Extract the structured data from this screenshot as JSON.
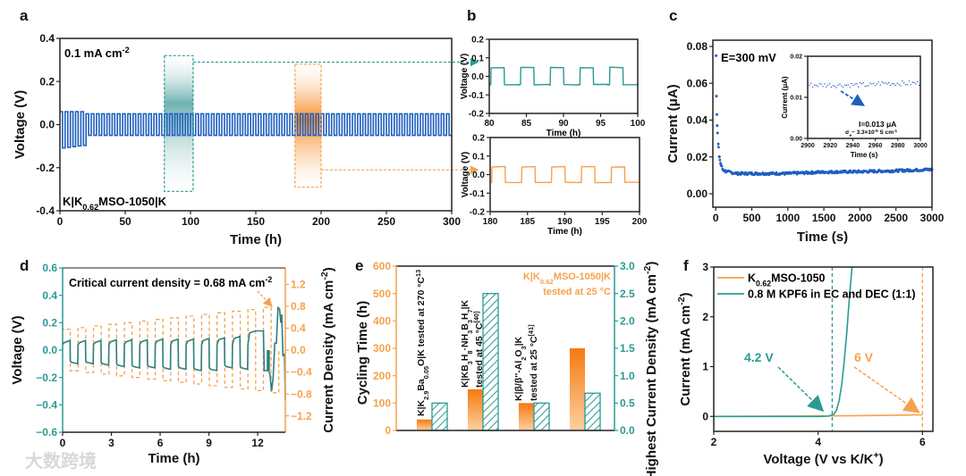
{
  "panel_labels": {
    "a": "a",
    "b": "b",
    "c": "c",
    "d": "d",
    "e": "e",
    "f": "f"
  },
  "watermark": "大数跨境",
  "colors": {
    "blue": "#1f5fc0",
    "teal": "#2a9a93",
    "teal_dark": "#2d7f7c",
    "orange": "#f6a14e",
    "orange_bar": "#f57f17",
    "axis": "#222222"
  },
  "chart_data": {
    "a": {
      "type": "line",
      "xlabel": "Time (h)",
      "ylabel": "Voltage (V)",
      "xlim": [
        0,
        300
      ],
      "ylim": [
        -0.4,
        0.4
      ],
      "xticks": [
        0,
        50,
        100,
        150,
        200,
        250,
        300
      ],
      "xtick_labels": [
        "0",
        "50",
        "100",
        "150",
        "200",
        "250",
        "300"
      ],
      "yticks": [
        -0.4,
        -0.2,
        0,
        0.2,
        0.4
      ],
      "ytick_labels": [
        "-0.4",
        "-0.2",
        "0.0",
        "0.2",
        "0.4"
      ],
      "current_label": [
        [
          "0.1 mA cm",
          "n"
        ],
        [
          "-2",
          "sup"
        ]
      ],
      "cell_label": [
        [
          "K|K",
          "n"
        ],
        [
          "0.62",
          "sub"
        ],
        [
          "MSO-1050|K",
          "n"
        ]
      ],
      "series": {
        "name": "K|K0.62MSO-1050|K voltage",
        "period_h": 4,
        "amplitude_V": 0.05,
        "initial_until_h": 20,
        "initial_pos_V": 0.06,
        "initial_neg_V": -0.11,
        "spike": [
          112,
          0.09
        ]
      },
      "highlights": [
        {
          "range_h": [
            80,
            102
          ],
          "v_range": [
            -0.31,
            0.32
          ],
          "color": "teal"
        },
        {
          "range_h": [
            180,
            200
          ],
          "v_range": [
            -0.29,
            0.28
          ],
          "color": "orange"
        }
      ]
    },
    "b_top": {
      "type": "line",
      "xlabel": "Time (h)",
      "ylabel": "Voltage (V)",
      "xlim": [
        80,
        100
      ],
      "ylim": [
        -0.2,
        0.2
      ],
      "xticks": [
        80,
        85,
        90,
        95,
        100
      ],
      "xtick_labels": [
        "80",
        "85",
        "90",
        "95",
        "100"
      ],
      "yticks": [
        -0.2,
        -0.1,
        0,
        0.1,
        0.2
      ],
      "ytick_labels": [
        "-0.2",
        "-0.1",
        "0.0",
        "0.1",
        "0.2"
      ],
      "series": {
        "period_h": 4,
        "high_V": 0.048,
        "low_V": -0.045
      }
    },
    "b_bottom": {
      "type": "line",
      "xlabel": "Time (h)",
      "ylabel": "Voltage (V)",
      "xlim": [
        180,
        200
      ],
      "ylim": [
        -0.2,
        0.2
      ],
      "xticks": [
        180,
        185,
        190,
        195,
        200
      ],
      "xtick_labels": [
        "180",
        "185",
        "190",
        "195",
        "200"
      ],
      "yticks": [
        -0.2,
        -0.1,
        0,
        0.1,
        0.2
      ],
      "ytick_labels": [
        "-0.2",
        "-0.1",
        "0.0",
        "0.1",
        "0.2"
      ],
      "series": {
        "period_h": 4,
        "high_V": 0.042,
        "low_V": -0.042
      }
    },
    "c": {
      "type": "scatter",
      "xlabel": "Time (s)",
      "ylabel": "Current (μA)",
      "xlim": [
        -40,
        3000
      ],
      "ylim": [
        -0.0073,
        0.0834
      ],
      "xticks": [
        0,
        500,
        1000,
        1500,
        2000,
        2500,
        3000
      ],
      "xtick_labels": [
        "0",
        "500",
        "1000",
        "1500",
        "2000",
        "2500",
        "3000"
      ],
      "yticks": [
        0,
        0.02,
        0.04,
        0.06,
        0.08
      ],
      "ytick_labels": [
        "0.00",
        "0.02",
        "0.04",
        "0.06",
        "0.08"
      ],
      "annotation": "E=300 mV",
      "points": [
        [
          5,
          0.075
        ],
        [
          10,
          0.053
        ],
        [
          15,
          0.043
        ],
        [
          20,
          0.037
        ],
        [
          25,
          0.033
        ],
        [
          35,
          0.027
        ],
        [
          50,
          0.02
        ],
        [
          70,
          0.016
        ],
        [
          100,
          0.013
        ],
        [
          150,
          0.012
        ],
        [
          300,
          0.011
        ],
        [
          1000,
          0.011
        ],
        [
          1500,
          0.0118
        ],
        [
          2000,
          0.012
        ],
        [
          2500,
          0.0125
        ],
        [
          3000,
          0.0132
        ]
      ],
      "inset": {
        "xlabel": "Time (s)",
        "ylabel": "Current (μA)",
        "xlim": [
          2900,
          3000
        ],
        "ylim": [
          0,
          0.02
        ],
        "xticks": [
          2900,
          2920,
          2940,
          2960,
          2980,
          3000
        ],
        "xtick_labels": [
          "2900",
          "2920",
          "2940",
          "2960",
          "2980",
          "3000"
        ],
        "yticks": [
          0,
          0.01,
          0.02
        ],
        "ytick_labels": [
          "0.00",
          "0.01",
          "0.02"
        ],
        "mean_current_uA": 0.013,
        "current_label": "I=0.013 μA",
        "conductivity_label": [
          [
            "σ",
            "n"
          ],
          [
            "e",
            "sub"
          ],
          [
            "~ 3.3×10",
            "n"
          ],
          [
            "-9",
            "sup"
          ],
          [
            " S cm",
            "n"
          ],
          [
            "-1",
            "sup"
          ]
        ]
      }
    },
    "d": {
      "type": "line",
      "xlabel": "Time (h)",
      "ylabel": "Voltage (V)",
      "y2label": [
        [
          "Current Density (mA cm",
          "n"
        ],
        [
          "-2",
          "sup"
        ],
        [
          ")",
          "n"
        ]
      ],
      "xlim": [
        0,
        13.7
      ],
      "ylim": [
        -0.6,
        0.6
      ],
      "y2lim": [
        -1.5,
        1.5
      ],
      "xticks": [
        0,
        3,
        6,
        9,
        12
      ],
      "xtick_labels": [
        "0",
        "3",
        "6",
        "9",
        "12"
      ],
      "yticks": [
        -0.6,
        -0.4,
        -0.2,
        0,
        0.2,
        0.4,
        0.6
      ],
      "ytick_labels": [
        "−0.6",
        "−0.4",
        "−0.2",
        "0.0",
        "0.2",
        "0.4",
        "0.6"
      ],
      "y2ticks": [
        -1.2,
        -0.8,
        -0.4,
        0,
        0.4,
        0.8,
        1.2
      ],
      "y2tick_labels": [
        "−1.2",
        "−0.8",
        "−0.4",
        "0.0",
        "0.4",
        "0.8",
        "1.2"
      ],
      "annotation": [
        [
          "Critical current density = 0.68 mA cm",
          "n"
        ],
        [
          "-2",
          "sup"
        ]
      ],
      "period_h": 0.95,
      "current_density_mA_cm2": [
        0.38,
        0.41,
        0.44,
        0.47,
        0.5,
        0.53,
        0.56,
        0.59,
        0.62,
        0.65,
        0.68,
        0.71,
        0.74,
        0.78
      ],
      "voltage_pos_V": [
        0.07,
        0.07,
        0.07,
        0.075,
        0.075,
        0.075,
        0.08,
        0.08,
        0.08,
        0.085,
        0.09,
        0.1,
        0.14
      ],
      "voltage_neg_V": [
        -0.1,
        -0.1,
        -0.11,
        -0.12,
        -0.13,
        -0.13,
        -0.14,
        -0.14,
        -0.15,
        -0.15,
        -0.13,
        -0.14
      ],
      "failure_points": [
        [
          12.35,
          0.14
        ],
        [
          12.4,
          -0.15
        ],
        [
          12.6,
          -0.15
        ],
        [
          12.6,
          -0.0
        ],
        [
          12.65,
          -0.15
        ],
        [
          12.75,
          -0.17
        ],
        [
          12.85,
          -0.3
        ],
        [
          12.95,
          -0.2
        ],
        [
          13.05,
          0.05
        ],
        [
          13.15,
          0.05
        ],
        [
          13.25,
          0.31
        ],
        [
          13.35,
          0.3
        ],
        [
          13.42,
          0.2
        ],
        [
          13.48,
          0.26
        ],
        [
          13.55,
          -0.04
        ],
        [
          13.65,
          -0.03
        ],
        [
          13.7,
          -0.37
        ]
      ]
    },
    "e": {
      "type": "bar",
      "ylabel": "Cycling Time (h)",
      "y2label": [
        [
          "Highest Current Density (mA cm",
          "n"
        ],
        [
          "-2",
          "sup"
        ],
        [
          ")",
          "n"
        ]
      ],
      "ylim": [
        0,
        600
      ],
      "y2lim": [
        0,
        3
      ],
      "yticks": [
        0,
        100,
        200,
        300,
        400,
        500,
        600
      ],
      "ytick_labels": [
        "0",
        "100",
        "200",
        "300",
        "400",
        "500",
        "600"
      ],
      "y2ticks": [
        0,
        0.5,
        1,
        1.5,
        2,
        2.5,
        3
      ],
      "y2tick_labels": [
        "0.0",
        "0.5",
        "1.0",
        "1.5",
        "2.0",
        "2.5",
        "3.0"
      ],
      "series": [
        {
          "name": "Cycling Time (h)",
          "values": [
            40,
            150,
            100,
            300
          ]
        },
        {
          "name": "Highest Current Density (mA cm-2)",
          "values": [
            0.5,
            2.5,
            0.5,
            0.68
          ]
        }
      ],
      "categories": [
        [
          [
            [
              "K|K",
              "n"
            ],
            [
              "2.9",
              "sub"
            ],
            [
              "Ba",
              "n"
            ],
            [
              "0.05",
              "sub"
            ],
            [
              "O|K tested at 270 °C",
              "n"
            ],
            [
              "13",
              "sup"
            ]
          ]
        ],
        [
          [
            [
              "K|KB",
              "n"
            ],
            [
              "3",
              "sub"
            ],
            [
              "H",
              "n"
            ],
            [
              "8",
              "sub"
            ],
            [
              "·NH",
              "n"
            ],
            [
              "3",
              "sub"
            ],
            [
              "B",
              "n"
            ],
            [
              "3",
              "sub"
            ],
            [
              "H",
              "n"
            ],
            [
              "7",
              "sub"
            ],
            [
              "|K",
              "n"
            ]
          ],
          [
            [
              "tested at 45 °C",
              "n"
            ],
            [
              "[40]",
              "sup"
            ]
          ]
        ],
        [
          [
            [
              "K|β/β''-Al",
              "n"
            ],
            [
              "2",
              "sub"
            ],
            [
              "O",
              "n"
            ],
            [
              "3",
              "sub"
            ],
            [
              "|K",
              "n"
            ]
          ],
          [
            [
              "tested at 25 °C",
              "n"
            ],
            [
              "[41]",
              "sup"
            ]
          ]
        ],
        [
          [
            [
              "K|K",
              "n"
            ],
            [
              "0.62",
              "sub"
            ],
            [
              "MSO-1050|K",
              "n"
            ]
          ],
          [
            [
              "tested at 25 °C",
              "n"
            ]
          ]
        ]
      ]
    },
    "f": {
      "type": "line",
      "xlabel": [
        [
          "Voltage (V vs K/K",
          "n"
        ],
        [
          "+",
          "sup"
        ],
        [
          ")",
          "n"
        ]
      ],
      "ylabel": [
        [
          "Current (mA cm",
          "n"
        ],
        [
          "-2",
          "sup"
        ],
        [
          ")",
          "n"
        ]
      ],
      "xlim": [
        2,
        6.2
      ],
      "ylim": [
        -0.3,
        3
      ],
      "xticks": [
        2,
        4,
        6
      ],
      "xtick_labels": [
        "2",
        "4",
        "6"
      ],
      "yticks": [
        0,
        1,
        2,
        3
      ],
      "ytick_labels": [
        "0",
        "1",
        "2",
        "3"
      ],
      "series": [
        {
          "name": [
            [
              "K",
              "n"
            ],
            [
              "0.62",
              "sub"
            ],
            [
              "MSO-1050",
              "n"
            ]
          ],
          "color": "orange",
          "points": [
            [
              2,
              0
            ],
            [
              3,
              0.003
            ],
            [
              4,
              0.008
            ],
            [
              5,
              0.018
            ],
            [
              6,
              0.032
            ]
          ]
        },
        {
          "name": [
            [
              "0.8 M KPF6 in EC and DEC (1:1)",
              "n"
            ]
          ],
          "color": "teal",
          "points": [
            [
              2,
              0
            ],
            [
              4,
              0
            ],
            [
              4.2,
              0.005
            ],
            [
              4.3,
              0.04
            ],
            [
              4.35,
              0.12
            ],
            [
              4.4,
              0.3
            ],
            [
              4.45,
              0.62
            ],
            [
              4.5,
              1.1
            ],
            [
              4.55,
              1.7
            ],
            [
              4.6,
              2.4
            ],
            [
              4.65,
              3.0
            ]
          ]
        }
      ],
      "thresholds": [
        {
          "x": 4.27,
          "label": "4.2 V",
          "color": "teal"
        },
        {
          "x": 6.0,
          "label": "6 V",
          "color": "orange"
        }
      ]
    }
  }
}
